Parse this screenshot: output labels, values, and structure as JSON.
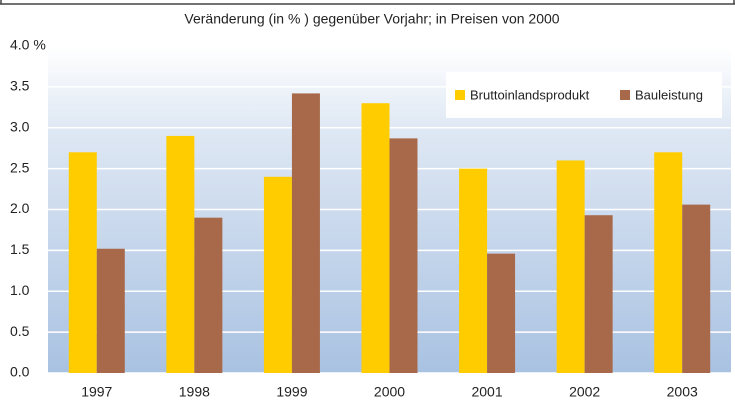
{
  "chart_data": {
    "type": "bar",
    "title": "Veränderung (in % ) gegenüber Vorjahr; in Preisen von 2000",
    "categories": [
      "1997",
      "1998",
      "1999",
      "2000",
      "2001",
      "2002",
      "2003"
    ],
    "series": [
      {
        "name": "Bruttoinlandsprodukt",
        "color": "#ffcc00",
        "values": [
          2.7,
          2.9,
          2.4,
          3.3,
          2.5,
          2.6,
          2.7
        ]
      },
      {
        "name": "Bauleistung",
        "color": "#a8694a",
        "values": [
          1.52,
          1.9,
          3.42,
          2.87,
          1.46,
          1.93,
          2.06
        ]
      }
    ],
    "ylim": [
      0,
      4
    ],
    "yticks": [
      {
        "value": 0,
        "label": "0.0"
      },
      {
        "value": 0.5,
        "label": "0.5"
      },
      {
        "value": 1,
        "label": "1.0"
      },
      {
        "value": 1.5,
        "label": "1.5"
      },
      {
        "value": 2,
        "label": "2.0"
      },
      {
        "value": 2.5,
        "label": "2.5"
      },
      {
        "value": 3,
        "label": "3.0"
      },
      {
        "value": 3.5,
        "label": "3.5"
      },
      {
        "value": 4,
        "label": "4.0 %"
      }
    ],
    "grid": true,
    "legend": "top-right"
  }
}
